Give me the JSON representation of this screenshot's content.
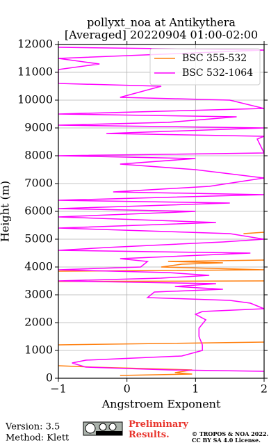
{
  "chart_data": {
    "type": "line",
    "title": "pollyxt_noa at Antikythera",
    "subtitle": "[Averaged] 20220904 01:00-02:00",
    "x_label": "Angstroem Exponent",
    "y_label": "Height (m)",
    "xlim": [
      -1,
      2
    ],
    "xticks": [
      {
        "value": -1,
        "label": "−1"
      },
      0,
      1,
      2
    ],
    "ylim": [
      0,
      12000
    ],
    "yticks": [
      0,
      1000,
      2000,
      3000,
      4000,
      5000,
      6000,
      7000,
      8000,
      9000,
      10000,
      11000,
      12000
    ],
    "grid": true,
    "legend": "upper right",
    "series": [
      {
        "name": "BSC 355-532",
        "color": "#ff7f0e",
        "x": [
          -0.1,
          0.95,
          0.7,
          0.95,
          -0.5,
          -1.0,
          null,
          -1.0,
          0.5,
          2.0,
          null,
          -1.0,
          2.0,
          null,
          -1.0,
          2.0,
          0.5,
          0.8,
          1.4,
          0.6,
          2.0,
          null,
          1.7,
          2.0
        ],
        "values": [
          100,
          150,
          200,
          300,
          400,
          450,
          null,
          1200,
          1250,
          1300,
          null,
          3480,
          3500,
          null,
          3850,
          3900,
          4000,
          4100,
          4150,
          4200,
          4250,
          null,
          5200,
          5250
        ]
      },
      {
        "name": "BSC 532-1064",
        "color": "#ff00ff",
        "x": [
          2.0,
          0.6,
          -0.6,
          -0.8,
          -0.6,
          0.8,
          1.1,
          1.1,
          1.05,
          1.05,
          1.15,
          1.0,
          1.1,
          2.0,
          1.9,
          1.8,
          1.5,
          0.3,
          0.4,
          1.4,
          0.7,
          1.3,
          -1.0,
          0.5,
          1.2,
          0.6,
          -1.0,
          0.2,
          0.3,
          -0.1,
          1.8,
          -1.0,
          -0.3,
          1.4,
          2.0,
          1.5,
          -1.0,
          1.3,
          -1.0,
          1.0,
          -1.0,
          1.5,
          -1.0,
          2.0,
          -0.2,
          1.2,
          2.0,
          1.0,
          -0.1,
          1.0,
          -1.0,
          2.0,
          1.9,
          2.0,
          -0.3,
          2.0,
          -1.0,
          0.6,
          1.6,
          -1.0,
          2.0,
          1.5,
          -0.1,
          0.5,
          -1.0,
          -1.0,
          -0.4,
          -1.0,
          2.0,
          -1.0
        ],
        "values": [
          250,
          300,
          400,
          550,
          650,
          800,
          1000,
          1200,
          1500,
          1800,
          2100,
          2300,
          2400,
          2500,
          2600,
          2700,
          2800,
          2900,
          3100,
          3200,
          3300,
          3400,
          3500,
          3600,
          3700,
          3800,
          3900,
          4000,
          4200,
          4300,
          4500,
          4600,
          4700,
          4900,
          5000,
          5200,
          5400,
          5600,
          5800,
          6000,
          6100,
          6300,
          6400,
          6600,
          6700,
          6900,
          7200,
          7500,
          7700,
          7900,
          8000,
          8100,
          8600,
          8700,
          8800,
          9000,
          9100,
          9200,
          9400,
          9500,
          9700,
          10000,
          10100,
          10500,
          10600,
          11100,
          11300,
          11500,
          11800,
          11900
        ]
      }
    ],
    "footer": {
      "version": "Version: 3.5",
      "method": "Method: Klett",
      "status": "Preliminary Results.",
      "copyright": "© TROPOS & NOA 2022.",
      "license": "CC BY SA 4.0 License."
    }
  }
}
